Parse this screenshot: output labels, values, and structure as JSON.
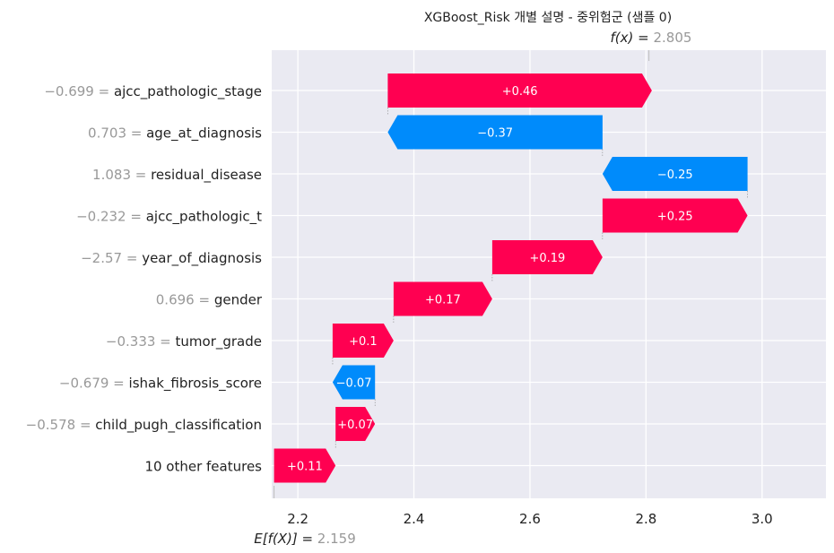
{
  "chart_data": {
    "type": "bar",
    "subtype": "waterfall",
    "title": "XGBoost_Risk 개별 설명 - 중위험군 (샘플 0)",
    "fx_label": "f(x) = ",
    "fx_value": "2.805",
    "fx": 2.805,
    "efx_label": "E[f(X)] = ",
    "efx_value": "2.159",
    "base": 2.159,
    "xlim": [
      2.155,
      3.11
    ],
    "xticks": [
      2.2,
      2.4,
      2.6,
      2.8,
      3.0
    ],
    "xtick_labels": [
      "2.2",
      "2.4",
      "2.6",
      "2.8",
      "3.0"
    ],
    "grid": true,
    "colors": {
      "positive": "#ff0051",
      "negative": "#008bfb",
      "plot_bg": "#eaeaf2"
    },
    "features": [
      {
        "value_label": "−0.699",
        "name": "ajcc_pathologic_stage",
        "contribution": 0.455,
        "label": "+0.46"
      },
      {
        "value_label": "0.703",
        "name": "age_at_diagnosis",
        "contribution": -0.37,
        "label": "−0.37"
      },
      {
        "value_label": "1.083",
        "name": "residual_disease",
        "contribution": -0.25,
        "label": "−0.25"
      },
      {
        "value_label": "−0.232",
        "name": "ajcc_pathologic_t",
        "contribution": 0.25,
        "label": "+0.25"
      },
      {
        "value_label": "−2.57",
        "name": "year_of_diagnosis",
        "contribution": 0.19,
        "label": "+0.19"
      },
      {
        "value_label": "0.696",
        "name": "gender",
        "contribution": 0.17,
        "label": "+0.17"
      },
      {
        "value_label": "−0.333",
        "name": "tumor_grade",
        "contribution": 0.105,
        "label": "+0.1"
      },
      {
        "value_label": "−0.679",
        "name": "ishak_fibrosis_score",
        "contribution": -0.073,
        "label": "−0.07"
      },
      {
        "value_label": "−0.578",
        "name": "child_pugh_classification",
        "contribution": 0.068,
        "label": "+0.07"
      },
      {
        "value_label": "",
        "name": "10 other features",
        "contribution": 0.106,
        "label": "+0.11"
      }
    ]
  }
}
